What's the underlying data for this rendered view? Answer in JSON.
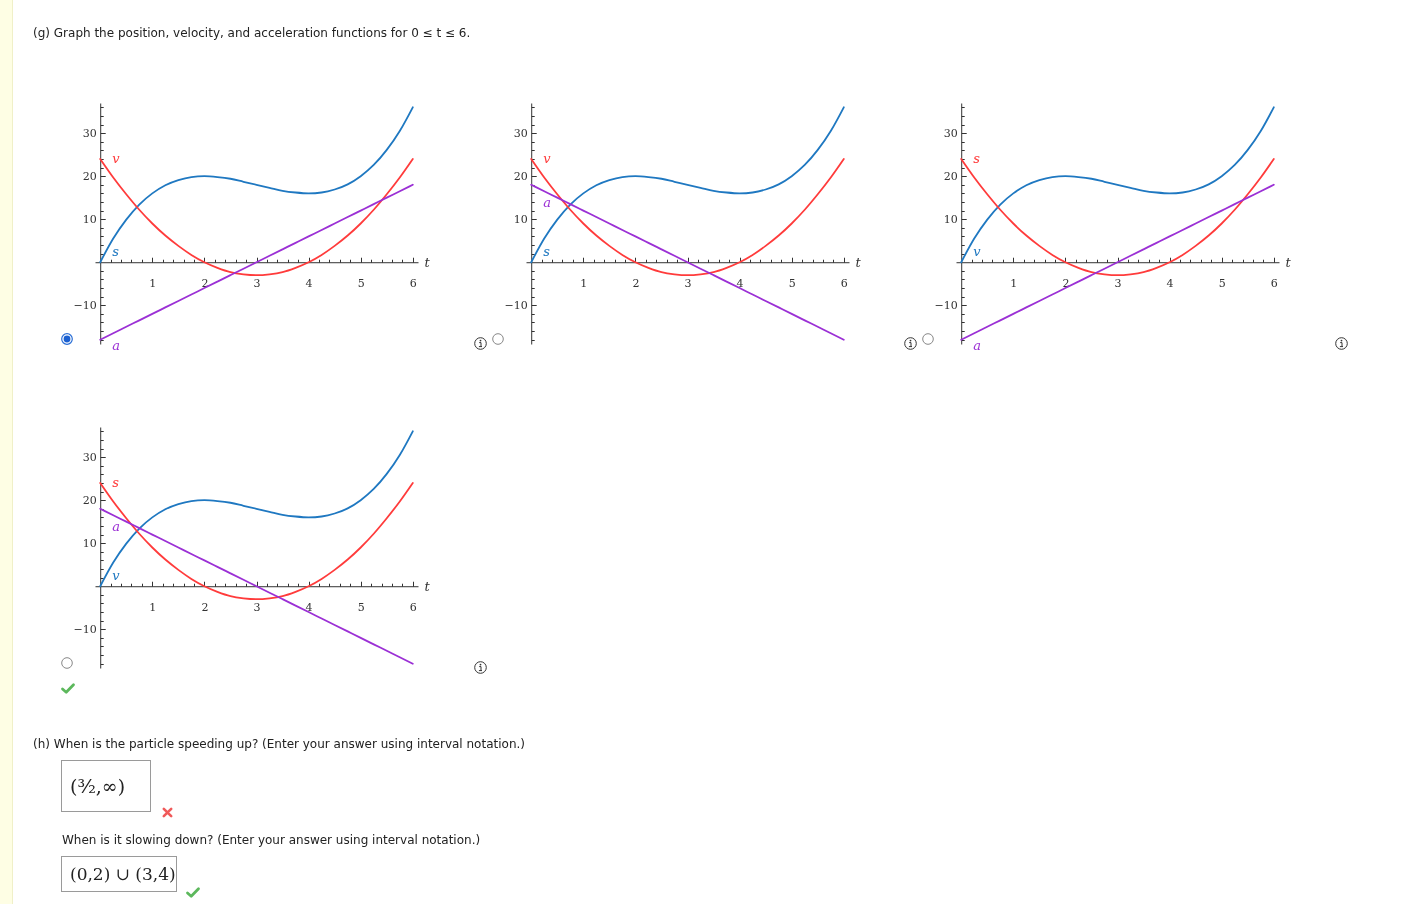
{
  "chart_data": [
    {
      "type": "other",
      "title": "(g) Graph the position, velocity, and acceleration functions for 0 ≤ t ≤ 6."
    },
    {
      "type": "line",
      "x": [
        0,
        0.25,
        0.5,
        0.75,
        1,
        1.25,
        1.5,
        1.75,
        2,
        2.25,
        2.5,
        2.75,
        3,
        3.25,
        3.5,
        3.75,
        4,
        4.25,
        4.5,
        4.75,
        5,
        5.25,
        5.5,
        5.75,
        6
      ],
      "series": [
        {
          "name": "s",
          "color": "#1f78c1",
          "values": [
            0,
            5.5,
            9.9,
            13.4,
            16,
            17.9,
            19.1,
            19.8,
            20,
            19.8,
            19.4,
            18.7,
            18,
            17.3,
            16.6,
            16.2,
            16,
            16.2,
            16.9,
            18.1,
            20,
            22.6,
            26.1,
            30.5,
            36
          ]
        },
        {
          "name": "v",
          "color": "#ff3b3b",
          "values": [
            24,
            19.7,
            15.8,
            12.2,
            9,
            6.2,
            3.8,
            1.7,
            0,
            -1.3,
            -2.3,
            -2.8,
            -3,
            -2.8,
            -2.3,
            -1.3,
            0,
            1.7,
            3.8,
            6.2,
            9,
            12.2,
            15.8,
            19.7,
            24
          ]
        },
        {
          "name": "a",
          "color": "#9b30d5",
          "values": [
            -18,
            -16.5,
            -15,
            -13.5,
            -12,
            -10.5,
            -9,
            -7.5,
            -6,
            -4.5,
            -3,
            -1.5,
            0,
            1.5,
            3,
            4.5,
            6,
            7.5,
            9,
            10.5,
            12,
            13.5,
            15,
            16.5,
            18
          ]
        }
      ],
      "xlabel": "t",
      "xlim": [
        -0.1,
        6.1
      ],
      "ylim": [
        -19,
        37
      ],
      "xticks": [
        {
          "value": 0.2,
          "label": null
        },
        {
          "value": 0.4,
          "label": null
        },
        {
          "value": 0.6,
          "label": null
        },
        {
          "value": 0.8,
          "label": null
        },
        1,
        {
          "value": 1.2,
          "label": null
        },
        {
          "value": 1.4,
          "label": null
        },
        {
          "value": 1.6,
          "label": null
        },
        {
          "value": 1.8,
          "label": null
        },
        2,
        {
          "value": 2.2,
          "label": null
        },
        {
          "value": 2.4,
          "label": null
        },
        {
          "value": 2.6,
          "label": null
        },
        {
          "value": 2.8,
          "label": null
        },
        3,
        {
          "value": 3.2,
          "label": null
        },
        {
          "value": 3.4,
          "label": null
        },
        {
          "value": 3.6,
          "label": null
        },
        {
          "value": 3.8,
          "label": null
        },
        4,
        {
          "value": 4.2,
          "label": null
        },
        {
          "value": 4.4,
          "label": null
        },
        {
          "value": 4.6,
          "label": null
        },
        {
          "value": 4.8,
          "label": null
        },
        5,
        {
          "value": 5.2,
          "label": null
        },
        {
          "value": 5.4,
          "label": null
        },
        {
          "value": 5.6,
          "label": null
        },
        {
          "value": 5.8,
          "label": null
        },
        6
      ],
      "yticks": [
        {
          "value": -18,
          "label": null
        },
        {
          "value": -16,
          "label": null
        },
        {
          "value": -14,
          "label": null
        },
        {
          "value": -12,
          "label": null
        },
        -10,
        {
          "value": -8,
          "label": null
        },
        {
          "value": -6,
          "label": null
        },
        {
          "value": -4,
          "label": null
        },
        {
          "value": -2,
          "label": null
        },
        {
          "value": 2,
          "label": null
        },
        {
          "value": 4,
          "label": null
        },
        {
          "value": 6,
          "label": null
        },
        {
          "value": 8,
          "label": null
        },
        10,
        {
          "value": 12,
          "label": null
        },
        {
          "value": 14,
          "label": null
        },
        {
          "value": 16,
          "label": null
        },
        {
          "value": 18,
          "label": null
        },
        20,
        {
          "value": 22,
          "label": null
        },
        {
          "value": 24,
          "label": null
        },
        {
          "value": 26,
          "label": null
        },
        {
          "value": 28,
          "label": null
        },
        30,
        {
          "value": 32,
          "label": null
        },
        {
          "value": 34,
          "label": null
        },
        {
          "value": 36,
          "label": null
        }
      ]
    },
    {
      "type": "line",
      "x": [
        0,
        0.25,
        0.5,
        0.75,
        1,
        1.25,
        1.5,
        1.75,
        2,
        2.25,
        2.5,
        2.75,
        3,
        3.25,
        3.5,
        3.75,
        4,
        4.25,
        4.5,
        4.75,
        5,
        5.25,
        5.5,
        5.75,
        6
      ],
      "series": [
        {
          "name": "s",
          "color": "#1f78c1",
          "values": [
            0,
            5.5,
            9.9,
            13.4,
            16,
            17.9,
            19.1,
            19.8,
            20,
            19.8,
            19.4,
            18.7,
            18,
            17.3,
            16.6,
            16.2,
            16,
            16.2,
            16.9,
            18.1,
            20,
            22.6,
            26.1,
            30.5,
            36
          ]
        },
        {
          "name": "v",
          "color": "#ff3b3b",
          "values": [
            24,
            19.7,
            15.8,
            12.2,
            9,
            6.2,
            3.8,
            1.7,
            0,
            -1.3,
            -2.3,
            -2.8,
            -3,
            -2.8,
            -2.3,
            -1.3,
            0,
            1.7,
            3.8,
            6.2,
            9,
            12.2,
            15.8,
            19.7,
            24
          ]
        },
        {
          "name": "a",
          "color": "#9b30d5",
          "values": [
            18,
            16.5,
            15,
            13.5,
            12,
            10.5,
            9,
            7.5,
            6,
            4.5,
            3,
            1.5,
            0,
            -1.5,
            -3,
            -4.5,
            -6,
            -7.5,
            -9,
            -10.5,
            -12,
            -13.5,
            -15,
            -16.5,
            -18
          ]
        }
      ],
      "xlabel": "t",
      "xlim": [
        -0.1,
        6.1
      ],
      "ylim": [
        -19,
        37
      ],
      "xticks": [
        {
          "value": 0.2,
          "label": null
        },
        {
          "value": 0.4,
          "label": null
        },
        {
          "value": 0.6,
          "label": null
        },
        {
          "value": 0.8,
          "label": null
        },
        1,
        {
          "value": 1.2,
          "label": null
        },
        {
          "value": 1.4,
          "label": null
        },
        {
          "value": 1.6,
          "label": null
        },
        {
          "value": 1.8,
          "label": null
        },
        2,
        {
          "value": 2.2,
          "label": null
        },
        {
          "value": 2.4,
          "label": null
        },
        {
          "value": 2.6,
          "label": null
        },
        {
          "value": 2.8,
          "label": null
        },
        3,
        {
          "value": 3.2,
          "label": null
        },
        {
          "value": 3.4,
          "label": null
        },
        {
          "value": 3.6,
          "label": null
        },
        {
          "value": 3.8,
          "label": null
        },
        4,
        {
          "value": 4.2,
          "label": null
        },
        {
          "value": 4.4,
          "label": null
        },
        {
          "value": 4.6,
          "label": null
        },
        {
          "value": 4.8,
          "label": null
        },
        5,
        {
          "value": 5.2,
          "label": null
        },
        {
          "value": 5.4,
          "label": null
        },
        {
          "value": 5.6,
          "label": null
        },
        {
          "value": 5.8,
          "label": null
        },
        6
      ],
      "yticks": [
        {
          "value": -18,
          "label": null
        },
        {
          "value": -16,
          "label": null
        },
        {
          "value": -14,
          "label": null
        },
        {
          "value": -12,
          "label": null
        },
        -10,
        {
          "value": -8,
          "label": null
        },
        {
          "value": -6,
          "label": null
        },
        {
          "value": -4,
          "label": null
        },
        {
          "value": -2,
          "label": null
        },
        {
          "value": 2,
          "label": null
        },
        {
          "value": 4,
          "label": null
        },
        {
          "value": 6,
          "label": null
        },
        {
          "value": 8,
          "label": null
        },
        10,
        {
          "value": 12,
          "label": null
        },
        {
          "value": 14,
          "label": null
        },
        {
          "value": 16,
          "label": null
        },
        {
          "value": 18,
          "label": null
        },
        20,
        {
          "value": 22,
          "label": null
        },
        {
          "value": 24,
          "label": null
        },
        {
          "value": 26,
          "label": null
        },
        {
          "value": 28,
          "label": null
        },
        30,
        {
          "value": 32,
          "label": null
        },
        {
          "value": 34,
          "label": null
        },
        {
          "value": 36,
          "label": null
        }
      ]
    },
    {
      "type": "line",
      "x": [
        0,
        0.25,
        0.5,
        0.75,
        1,
        1.25,
        1.5,
        1.75,
        2,
        2.25,
        2.5,
        2.75,
        3,
        3.25,
        3.5,
        3.75,
        4,
        4.25,
        4.5,
        4.75,
        5,
        5.25,
        5.5,
        5.75,
        6
      ],
      "series": [
        {
          "name": "v",
          "color": "#1f78c1",
          "values": [
            0,
            5.5,
            9.9,
            13.4,
            16,
            17.9,
            19.1,
            19.8,
            20,
            19.8,
            19.4,
            18.7,
            18,
            17.3,
            16.6,
            16.2,
            16,
            16.2,
            16.9,
            18.1,
            20,
            22.6,
            26.1,
            30.5,
            36
          ]
        },
        {
          "name": "s",
          "color": "#ff3b3b",
          "values": [
            24,
            19.7,
            15.8,
            12.2,
            9,
            6.2,
            3.8,
            1.7,
            0,
            -1.3,
            -2.3,
            -2.8,
            -3,
            -2.8,
            -2.3,
            -1.3,
            0,
            1.7,
            3.8,
            6.2,
            9,
            12.2,
            15.8,
            19.7,
            24
          ]
        },
        {
          "name": "a",
          "color": "#9b30d5",
          "values": [
            -18,
            -16.5,
            -15,
            -13.5,
            -12,
            -10.5,
            -9,
            -7.5,
            -6,
            -4.5,
            -3,
            -1.5,
            0,
            1.5,
            3,
            4.5,
            6,
            7.5,
            9,
            10.5,
            12,
            13.5,
            15,
            16.5,
            18
          ]
        }
      ],
      "xlabel": "t",
      "xlim": [
        -0.1,
        6.1
      ],
      "ylim": [
        -19,
        37
      ],
      "xticks": [
        {
          "value": 0.2,
          "label": null
        },
        {
          "value": 0.4,
          "label": null
        },
        {
          "value": 0.6,
          "label": null
        },
        {
          "value": 0.8,
          "label": null
        },
        1,
        {
          "value": 1.2,
          "label": null
        },
        {
          "value": 1.4,
          "label": null
        },
        {
          "value": 1.6,
          "label": null
        },
        {
          "value": 1.8,
          "label": null
        },
        2,
        {
          "value": 2.2,
          "label": null
        },
        {
          "value": 2.4,
          "label": null
        },
        {
          "value": 2.6,
          "label": null
        },
        {
          "value": 2.8,
          "label": null
        },
        3,
        {
          "value": 3.2,
          "label": null
        },
        {
          "value": 3.4,
          "label": null
        },
        {
          "value": 3.6,
          "label": null
        },
        {
          "value": 3.8,
          "label": null
        },
        4,
        {
          "value": 4.2,
          "label": null
        },
        {
          "value": 4.4,
          "label": null
        },
        {
          "value": 4.6,
          "label": null
        },
        {
          "value": 4.8,
          "label": null
        },
        5,
        {
          "value": 5.2,
          "label": null
        },
        {
          "value": 5.4,
          "label": null
        },
        {
          "value": 5.6,
          "label": null
        },
        {
          "value": 5.8,
          "label": null
        },
        6
      ],
      "yticks": [
        {
          "value": -18,
          "label": null
        },
        {
          "value": -16,
          "label": null
        },
        {
          "value": -14,
          "label": null
        },
        {
          "value": -12,
          "label": null
        },
        -10,
        {
          "value": -8,
          "label": null
        },
        {
          "value": -6,
          "label": null
        },
        {
          "value": -4,
          "label": null
        },
        {
          "value": -2,
          "label": null
        },
        {
          "value": 2,
          "label": null
        },
        {
          "value": 4,
          "label": null
        },
        {
          "value": 6,
          "label": null
        },
        {
          "value": 8,
          "label": null
        },
        10,
        {
          "value": 12,
          "label": null
        },
        {
          "value": 14,
          "label": null
        },
        {
          "value": 16,
          "label": null
        },
        {
          "value": 18,
          "label": null
        },
        20,
        {
          "value": 22,
          "label": null
        },
        {
          "value": 24,
          "label": null
        },
        {
          "value": 26,
          "label": null
        },
        {
          "value": 28,
          "label": null
        },
        30,
        {
          "value": 32,
          "label": null
        },
        {
          "value": 34,
          "label": null
        },
        {
          "value": 36,
          "label": null
        }
      ]
    },
    {
      "type": "line",
      "x": [
        0,
        0.25,
        0.5,
        0.75,
        1,
        1.25,
        1.5,
        1.75,
        2,
        2.25,
        2.5,
        2.75,
        3,
        3.25,
        3.5,
        3.75,
        4,
        4.25,
        4.5,
        4.75,
        5,
        5.25,
        5.5,
        5.75,
        6
      ],
      "series": [
        {
          "name": "v",
          "color": "#1f78c1",
          "values": [
            0,
            5.5,
            9.9,
            13.4,
            16,
            17.9,
            19.1,
            19.8,
            20,
            19.8,
            19.4,
            18.7,
            18,
            17.3,
            16.6,
            16.2,
            16,
            16.2,
            16.9,
            18.1,
            20,
            22.6,
            26.1,
            30.5,
            36
          ]
        },
        {
          "name": "s",
          "color": "#ff3b3b",
          "values": [
            24,
            19.7,
            15.8,
            12.2,
            9,
            6.2,
            3.8,
            1.7,
            0,
            -1.3,
            -2.3,
            -2.8,
            -3,
            -2.8,
            -2.3,
            -1.3,
            0,
            1.7,
            3.8,
            6.2,
            9,
            12.2,
            15.8,
            19.7,
            24
          ]
        },
        {
          "name": "a",
          "color": "#9b30d5",
          "values": [
            18,
            16.5,
            15,
            13.5,
            12,
            10.5,
            9,
            7.5,
            6,
            4.5,
            3,
            1.5,
            0,
            -1.5,
            -3,
            -4.5,
            -6,
            -7.5,
            -9,
            -10.5,
            -12,
            -13.5,
            -15,
            -16.5,
            -18
          ]
        }
      ],
      "xlabel": "t",
      "xlim": [
        -0.1,
        6.1
      ],
      "ylim": [
        -19,
        37
      ],
      "xticks": [
        {
          "value": 0.2,
          "label": null
        },
        {
          "value": 0.4,
          "label": null
        },
        {
          "value": 0.6,
          "label": null
        },
        {
          "value": 0.8,
          "label": null
        },
        1,
        {
          "value": 1.2,
          "label": null
        },
        {
          "value": 1.4,
          "label": null
        },
        {
          "value": 1.6,
          "label": null
        },
        {
          "value": 1.8,
          "label": null
        },
        2,
        {
          "value": 2.2,
          "label": null
        },
        {
          "value": 2.4,
          "label": null
        },
        {
          "value": 2.6,
          "label": null
        },
        {
          "value": 2.8,
          "label": null
        },
        3,
        {
          "value": 3.2,
          "label": null
        },
        {
          "value": 3.4,
          "label": null
        },
        {
          "value": 3.6,
          "label": null
        },
        {
          "value": 3.8,
          "label": null
        },
        4,
        {
          "value": 4.2,
          "label": null
        },
        {
          "value": 4.4,
          "label": null
        },
        {
          "value": 4.6,
          "label": null
        },
        {
          "value": 4.8,
          "label": null
        },
        5,
        {
          "value": 5.2,
          "label": null
        },
        {
          "value": 5.4,
          "label": null
        },
        {
          "value": 5.6,
          "label": null
        },
        {
          "value": 5.8,
          "label": null
        },
        6
      ],
      "yticks": [
        {
          "value": -18,
          "label": null
        },
        {
          "value": -16,
          "label": null
        },
        {
          "value": -14,
          "label": null
        },
        {
          "value": -12,
          "label": null
        },
        -10,
        {
          "value": -8,
          "label": null
        },
        {
          "value": -6,
          "label": null
        },
        {
          "value": -4,
          "label": null
        },
        {
          "value": -2,
          "label": null
        },
        {
          "value": 2,
          "label": null
        },
        {
          "value": 4,
          "label": null
        },
        {
          "value": 6,
          "label": null
        },
        {
          "value": 8,
          "label": null
        },
        10,
        {
          "value": 12,
          "label": null
        },
        {
          "value": 14,
          "label": null
        },
        {
          "value": 16,
          "label": null
        },
        {
          "value": 18,
          "label": null
        },
        20,
        {
          "value": 22,
          "label": null
        },
        {
          "value": 24,
          "label": null
        },
        {
          "value": 26,
          "label": null
        },
        {
          "value": 28,
          "label": null
        },
        30,
        {
          "value": 32,
          "label": null
        },
        {
          "value": 34,
          "label": null
        },
        {
          "value": 36,
          "label": null
        }
      ]
    },
    {
      "type": "other",
      "annotations": [
        "(h) When is the particle speeding up? (Enter your answer using interval notation.)",
        "(³⁄₂,∞)",
        "When is it slowing down? (Enter your answer using interval notation.)",
        "(0,2) ∪ (3,4)"
      ]
    }
  ]
}
